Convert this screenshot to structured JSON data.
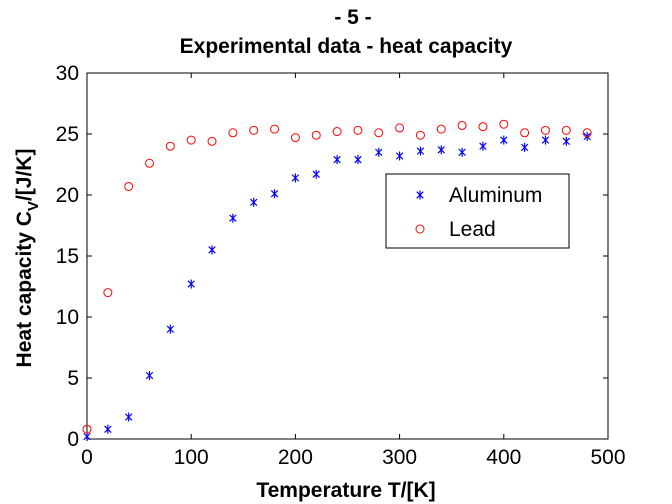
{
  "chart_data": {
    "type": "scatter",
    "title_line1": "- 5 -",
    "title_line2": "Experimental data - heat capacity",
    "xlabel": "Temperature T/[K]",
    "ylabel_main": "Heat capacity C",
    "ylabel_sub": "V",
    "ylabel_tail": "/[J/K]",
    "xlim": [
      0,
      500
    ],
    "ylim": [
      0,
      30
    ],
    "xticks": [
      0,
      100,
      200,
      300,
      400,
      500
    ],
    "yticks": [
      0,
      5,
      10,
      15,
      20,
      25,
      30
    ],
    "grid": false,
    "legend_position": "upper-right, inside",
    "series": [
      {
        "name": "Aluminum",
        "marker": "asterisk",
        "color": "#0000ff",
        "x": [
          0,
          20,
          40,
          60,
          80,
          100,
          120,
          140,
          160,
          180,
          200,
          220,
          240,
          260,
          280,
          300,
          320,
          340,
          360,
          380,
          400,
          420,
          440,
          460,
          480
        ],
        "y": [
          0.2,
          0.8,
          1.8,
          5.2,
          9.0,
          12.7,
          15.5,
          18.1,
          19.4,
          20.1,
          21.4,
          21.7,
          22.9,
          22.9,
          23.5,
          23.2,
          23.6,
          23.7,
          23.5,
          24.0,
          24.5,
          23.9,
          24.5,
          24.4,
          24.8
        ]
      },
      {
        "name": "Lead",
        "marker": "circle",
        "color": "#ff0000",
        "x": [
          0,
          20,
          40,
          60,
          80,
          100,
          120,
          140,
          160,
          180,
          200,
          220,
          240,
          260,
          280,
          300,
          320,
          340,
          360,
          380,
          400,
          420,
          440,
          460,
          480
        ],
        "y": [
          0.8,
          12.0,
          20.7,
          22.6,
          24.0,
          24.5,
          24.4,
          25.1,
          25.3,
          25.4,
          24.7,
          24.9,
          25.2,
          25.3,
          25.1,
          25.5,
          24.9,
          25.4,
          25.7,
          25.6,
          25.8,
          25.1,
          25.3,
          25.3,
          25.1
        ]
      }
    ]
  }
}
